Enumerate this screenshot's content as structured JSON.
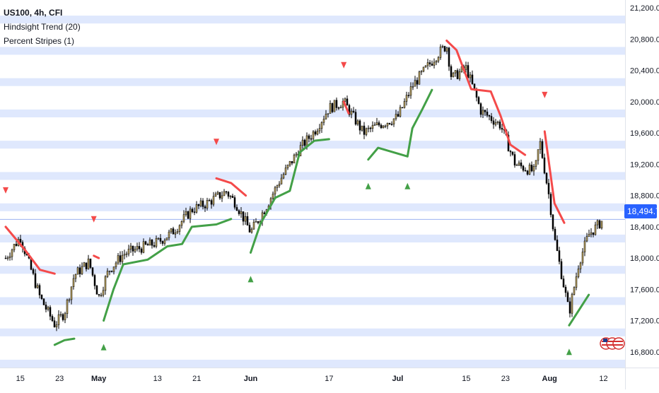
{
  "header": {
    "symbol": "US100, 4h, CFI",
    "indicator_1": "Hindsight Trend (20)",
    "indicator_2": "Percent Stripes (1)"
  },
  "last_price_label": "18,494.71",
  "flag_icon": "us-flag-icon",
  "colors": {
    "stripe": "#dfe8fd",
    "candle": "#000000",
    "trend_up": "#43a047",
    "trend_down": "#f44a4a",
    "marker_up": "#43a047",
    "marker_down": "#f44a4a",
    "price_line": "#9db2f0",
    "price_tag": "#2962ff"
  },
  "chart_data": {
    "type": "candlestick",
    "title": "US100, 4h, CFI",
    "ylim": [
      16600,
      21300
    ],
    "y_ticks": [
      "21,200.00",
      "20,800.00",
      "20,400.00",
      "20,000.00",
      "19,600.00",
      "19,200.00",
      "18,800.00",
      "18,400.00",
      "18,000.00",
      "17,600.00",
      "17,200.00",
      "16,800.00"
    ],
    "x_ticks": [
      "15",
      "23",
      "May",
      "13",
      "21",
      "Jun",
      "17",
      "Jul",
      "15",
      "23",
      "Aug",
      "12"
    ],
    "last_price": 18494.71,
    "close_path": [
      {
        "date": "Apr 12",
        "close": 18000
      },
      {
        "date": "Apr 15",
        "close": 18270
      },
      {
        "date": "Apr 19",
        "close": 17500
      },
      {
        "date": "Apr 22",
        "close": 17150
      },
      {
        "date": "Apr 24",
        "close": 17300
      },
      {
        "date": "Apr 26",
        "close": 17780
      },
      {
        "date": "Apr 29",
        "close": 17950
      },
      {
        "date": "May 1",
        "close": 17500
      },
      {
        "date": "May 3",
        "close": 17840
      },
      {
        "date": "May 6",
        "close": 18050
      },
      {
        "date": "May 9",
        "close": 18120
      },
      {
        "date": "May 13",
        "close": 18200
      },
      {
        "date": "May 16",
        "close": 18330
      },
      {
        "date": "May 20",
        "close": 18620
      },
      {
        "date": "May 23",
        "close": 18700
      },
      {
        "date": "May 27",
        "close": 18850
      },
      {
        "date": "May 29",
        "close": 18700
      },
      {
        "date": "Jun 1",
        "close": 18330
      },
      {
        "date": "Jun 4",
        "close": 18640
      },
      {
        "date": "Jun 7",
        "close": 19000
      },
      {
        "date": "Jun 11",
        "close": 19400
      },
      {
        "date": "Jun 14",
        "close": 19620
      },
      {
        "date": "Jun 17",
        "close": 19920
      },
      {
        "date": "Jun 20",
        "close": 20000
      },
      {
        "date": "Jun 24",
        "close": 19600
      },
      {
        "date": "Jun 27",
        "close": 19700
      },
      {
        "date": "Jul 1",
        "close": 19800
      },
      {
        "date": "Jul 4",
        "close": 20200
      },
      {
        "date": "Jul 9",
        "close": 20600
      },
      {
        "date": "Jul 11",
        "close": 20720
      },
      {
        "date": "Jul 12",
        "close": 20300
      },
      {
        "date": "Jul 15",
        "close": 20430
      },
      {
        "date": "Jul 18",
        "close": 19880
      },
      {
        "date": "Jul 22",
        "close": 19700
      },
      {
        "date": "Jul 25",
        "close": 19200
      },
      {
        "date": "Jul 29",
        "close": 19100
      },
      {
        "date": "Jul 30",
        "close": 19500
      },
      {
        "date": "Aug 1",
        "close": 18750
      },
      {
        "date": "Aug 2",
        "close": 18250
      },
      {
        "date": "Aug 5",
        "close": 17300
      },
      {
        "date": "Aug 7",
        "close": 17950
      },
      {
        "date": "Aug 9",
        "close": 18300
      },
      {
        "date": "Aug 12",
        "close": 18494.71
      }
    ],
    "hindsight_trend": [
      {
        "direction": "down",
        "points": [
          {
            "date": "Apr 12",
            "value": 18400
          },
          {
            "date": "Apr 16",
            "value": 18100
          },
          {
            "date": "Apr 19",
            "value": 17850
          },
          {
            "date": "Apr 22",
            "value": 17800
          }
        ]
      },
      {
        "direction": "up",
        "points": [
          {
            "date": "Apr 22",
            "value": 16890
          },
          {
            "date": "Apr 24",
            "value": 16950
          },
          {
            "date": "Apr 26",
            "value": 16970
          }
        ]
      },
      {
        "direction": "down",
        "points": [
          {
            "date": "Apr 30",
            "value": 18030
          },
          {
            "date": "May 1",
            "value": 18000
          }
        ]
      },
      {
        "direction": "up",
        "points": [
          {
            "date": "May 2",
            "value": 17200
          },
          {
            "date": "May 4",
            "value": 17600
          },
          {
            "date": "May 6",
            "value": 17920
          },
          {
            "date": "May 11",
            "value": 17980
          },
          {
            "date": "May 15",
            "value": 18150
          },
          {
            "date": "May 18",
            "value": 18180
          },
          {
            "date": "May 20",
            "value": 18400
          },
          {
            "date": "May 25",
            "value": 18430
          },
          {
            "date": "May 28",
            "value": 18500
          }
        ]
      },
      {
        "direction": "down",
        "points": [
          {
            "date": "May 25",
            "value": 19020
          },
          {
            "date": "May 28",
            "value": 18960
          },
          {
            "date": "May 31",
            "value": 18800
          }
        ]
      },
      {
        "direction": "up",
        "points": [
          {
            "date": "Jun 1",
            "value": 18070
          },
          {
            "date": "Jun 3",
            "value": 18440
          },
          {
            "date": "Jun 6",
            "value": 18770
          },
          {
            "date": "Jun 9",
            "value": 18860
          },
          {
            "date": "Jun 11",
            "value": 19350
          },
          {
            "date": "Jun 14",
            "value": 19500
          },
          {
            "date": "Jun 17",
            "value": 19520
          }
        ]
      },
      {
        "direction": "down",
        "points": [
          {
            "date": "Jun 20",
            "value": 20000
          },
          {
            "date": "Jun 21",
            "value": 19850
          }
        ]
      },
      {
        "direction": "up",
        "points": [
          {
            "date": "Jun 25",
            "value": 19260
          },
          {
            "date": "Jun 27",
            "value": 19410
          },
          {
            "date": "Jul 3",
            "value": 19300
          },
          {
            "date": "Jul 4",
            "value": 19660
          },
          {
            "date": "Jul 6",
            "value": 19900
          },
          {
            "date": "Jul 8",
            "value": 20150
          }
        ]
      },
      {
        "direction": "down",
        "points": [
          {
            "date": "Jul 11",
            "value": 20780
          },
          {
            "date": "Jul 13",
            "value": 20660
          },
          {
            "date": "Jul 16",
            "value": 20160
          },
          {
            "date": "Jul 20",
            "value": 20130
          },
          {
            "date": "Jul 22",
            "value": 19820
          },
          {
            "date": "Jul 24",
            "value": 19450
          },
          {
            "date": "Jul 27",
            "value": 19320
          }
        ]
      },
      {
        "direction": "down",
        "points": [
          {
            "date": "Jul 31",
            "value": 19620
          },
          {
            "date": "Aug 2",
            "value": 18700
          },
          {
            "date": "Aug 4",
            "value": 18450
          }
        ]
      },
      {
        "direction": "up",
        "points": [
          {
            "date": "Aug 5",
            "value": 17140
          },
          {
            "date": "Aug 9",
            "value": 17530
          }
        ]
      }
    ],
    "trend_markers": [
      {
        "direction": "down",
        "date": "Apr 12"
      },
      {
        "direction": "up",
        "date": "May 2"
      },
      {
        "direction": "down",
        "date": "Apr 30"
      },
      {
        "direction": "down",
        "date": "May 25"
      },
      {
        "direction": "up",
        "date": "Jun 1"
      },
      {
        "direction": "down",
        "date": "Jun 20"
      },
      {
        "direction": "up",
        "date": "Jun 25"
      },
      {
        "direction": "up",
        "date": "Jul 3"
      },
      {
        "direction": "down",
        "date": "Jul 31"
      },
      {
        "direction": "up",
        "date": "Aug 5"
      }
    ]
  }
}
